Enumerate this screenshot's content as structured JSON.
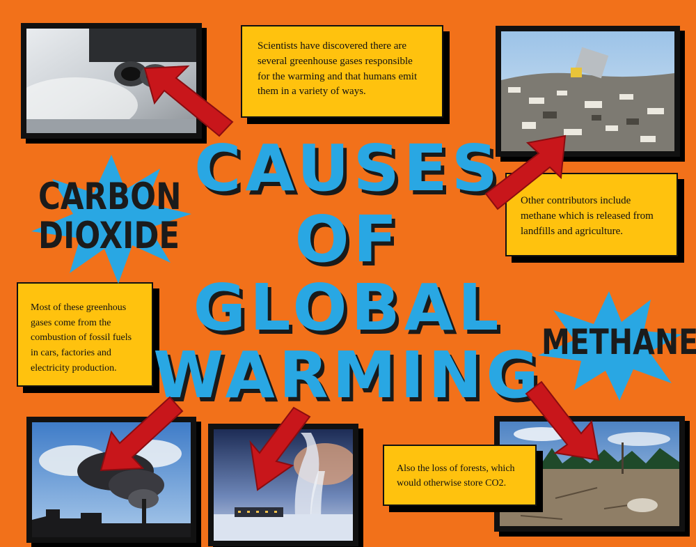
{
  "title": {
    "line1": "CAUSES",
    "line2": "OF",
    "line3": "GLOBAL",
    "line4": "WARMING"
  },
  "bursts": {
    "carbon_line1": "CARBON",
    "carbon_line2": "DIOXIDE",
    "methane": "METHANE"
  },
  "notes": {
    "scientists": "Scientists have discovered there are several greenhouse gases responsible for the warming and that humans emit them in a variety of ways.",
    "methane": "Other contributors include methane which is released from landfills and agriculture.",
    "fossil": "Most of these greenhous gases come from the combustion of fossil fuels in cars, factories and electricity production.",
    "forests": "Also the loss of forests, which would otherwise store CO2."
  },
  "colors": {
    "background": "#f2711a",
    "title": "#29a7e3",
    "note": "#ffc20e",
    "arrow": "#c8161b",
    "burst": "#29a7e3"
  },
  "images": [
    "exhaust-pipe-photo",
    "landfill-photo",
    "smokestack-photo",
    "geothermal-plant-photo",
    "cleared-forest-photo"
  ]
}
